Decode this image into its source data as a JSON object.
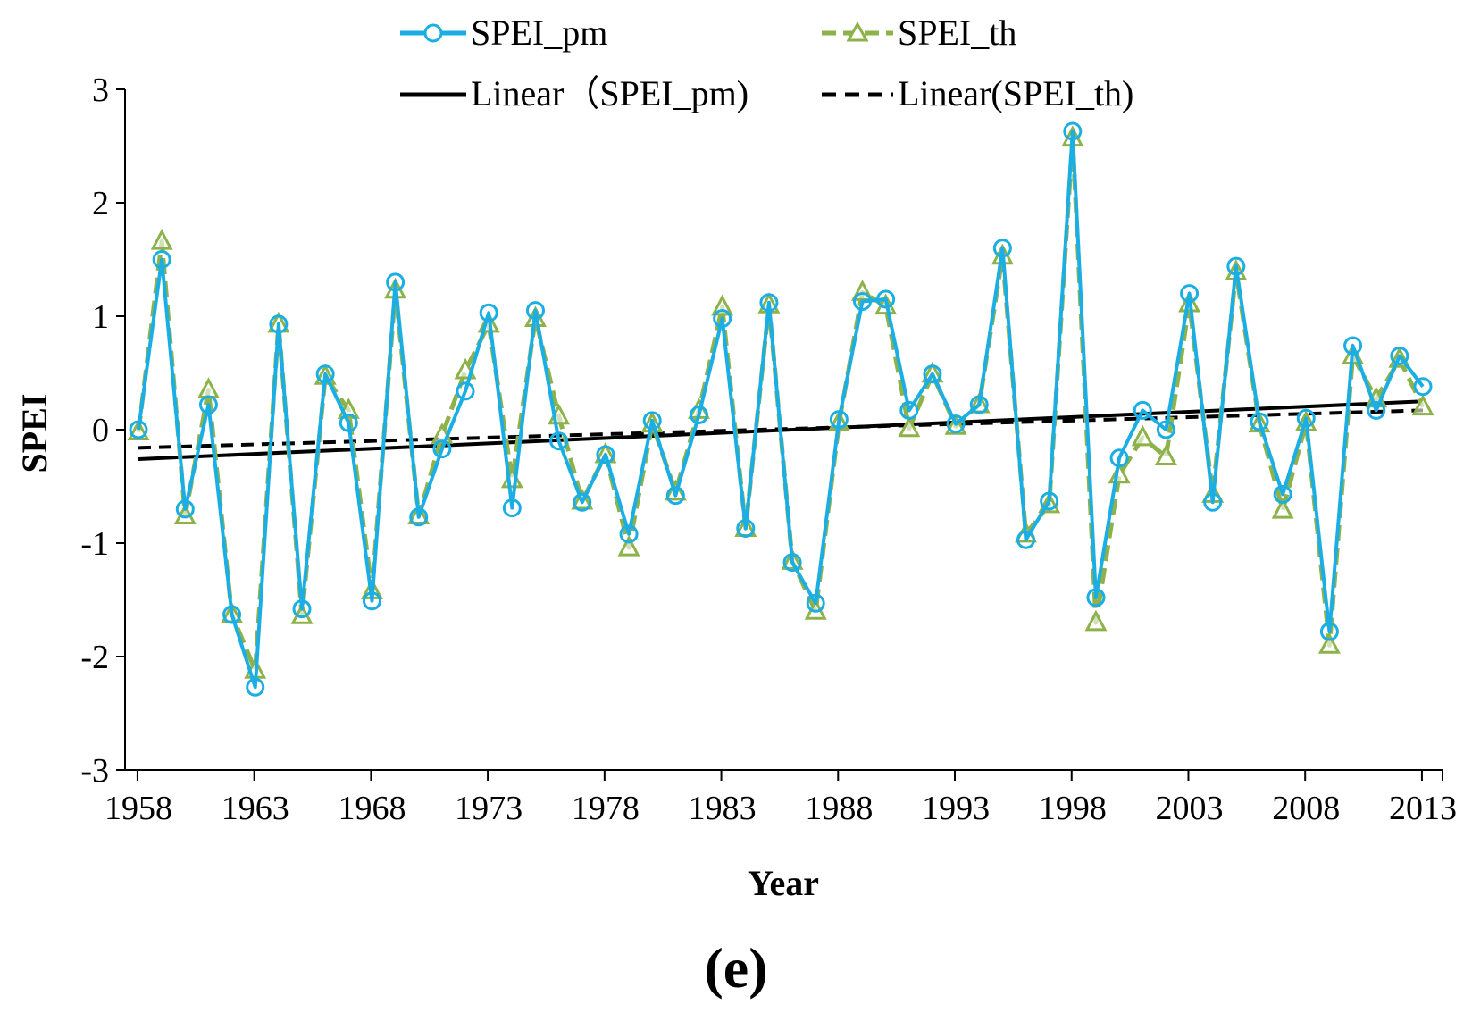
{
  "chart_data": {
    "type": "line",
    "panel_label": "(e)",
    "xlabel": "Year",
    "ylabel": "SPEI",
    "xlim": [
      1958,
      2013
    ],
    "ylim": [
      -3,
      3
    ],
    "x_ticks": [
      1958,
      1963,
      1968,
      1973,
      1978,
      1983,
      1988,
      1993,
      1998,
      2003,
      2008,
      2013
    ],
    "y_ticks": [
      3,
      2,
      1,
      0,
      -1,
      -2,
      -3
    ],
    "legend_position": "top",
    "x": [
      1958,
      1959,
      1960,
      1961,
      1962,
      1963,
      1964,
      1965,
      1966,
      1967,
      1968,
      1969,
      1970,
      1971,
      1972,
      1973,
      1974,
      1975,
      1976,
      1977,
      1978,
      1979,
      1980,
      1981,
      1982,
      1983,
      1984,
      1985,
      1986,
      1987,
      1988,
      1989,
      1990,
      1991,
      1992,
      1993,
      1994,
      1995,
      1996,
      1997,
      1998,
      1999,
      2000,
      2001,
      2002,
      2003,
      2004,
      2005,
      2006,
      2007,
      2008,
      2009,
      2010,
      2011,
      2012,
      2013
    ],
    "series": [
      {
        "name": "SPEI_pm",
        "color": "#1AAEE5",
        "marker": "circle",
        "line": "solid",
        "values": [
          0.0,
          1.5,
          -0.7,
          0.22,
          -1.63,
          -2.27,
          0.93,
          -1.58,
          0.49,
          0.06,
          -1.51,
          1.3,
          -0.77,
          -0.17,
          0.34,
          1.03,
          -0.69,
          1.05,
          -0.1,
          -0.64,
          -0.22,
          -0.92,
          0.08,
          -0.58,
          0.13,
          0.98,
          -0.87,
          1.12,
          -1.17,
          -1.53,
          0.09,
          1.13,
          1.15,
          0.17,
          0.49,
          0.05,
          0.22,
          1.6,
          -0.97,
          -0.63,
          2.63,
          -1.48,
          -0.25,
          0.17,
          0.0,
          1.2,
          -0.64,
          1.44,
          0.07,
          -0.57,
          0.1,
          -1.78,
          0.74,
          0.17,
          0.65,
          0.38
        ]
      },
      {
        "name": "SPEI_th",
        "color": "#8DB24A",
        "marker": "triangle",
        "line": "dashed",
        "values": [
          -0.02,
          1.66,
          -0.76,
          0.35,
          -1.63,
          -2.12,
          0.93,
          -1.64,
          0.47,
          0.17,
          -1.42,
          1.23,
          -0.76,
          -0.05,
          0.52,
          0.93,
          -0.44,
          0.98,
          0.12,
          -0.63,
          -0.22,
          -1.04,
          0.05,
          -0.55,
          0.17,
          1.08,
          -0.87,
          1.1,
          -1.16,
          -1.6,
          0.06,
          1.21,
          1.09,
          0.01,
          0.49,
          0.03,
          0.22,
          1.53,
          -0.92,
          -0.66,
          2.57,
          -1.7,
          -0.4,
          -0.07,
          -0.24,
          1.11,
          -0.57,
          1.39,
          0.05,
          -0.71,
          0.06,
          -1.9,
          0.65,
          0.27,
          0.62,
          0.2
        ]
      },
      {
        "name": "Linear（SPEI_pm)",
        "color": "#000000",
        "line": "solid",
        "trend_endpoints": [
          -0.26,
          0.25
        ]
      },
      {
        "name": "Linear(SPEI_th)",
        "color": "#000000",
        "line": "dashed",
        "trend_endpoints": [
          -0.16,
          0.17
        ]
      }
    ]
  }
}
